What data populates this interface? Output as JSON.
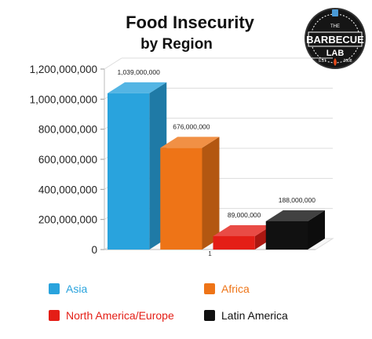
{
  "title": "Food Insecurity",
  "subtitle": "by Region",
  "logo": {
    "icon": "barbecue-lab-logo",
    "top_text": "THE",
    "main_text": "BARBECUE",
    "bottom_text": "LAB",
    "est_left": "EST",
    "est_right": "2008"
  },
  "colors": {
    "asia": "#29a3dd",
    "africa": "#ee7417",
    "north_america_europe": "#e41e16",
    "latin_america": "#111111",
    "asia_text": "#29a3dd",
    "africa_text": "#ee7417",
    "nae_text": "#e41e16",
    "latin_text": "#111111"
  },
  "chart_data": {
    "type": "bar",
    "title": "Food Insecurity by Region",
    "categories": [
      "Asia",
      "Africa",
      "North America/Europe",
      "Latin America"
    ],
    "values": [
      1039000000,
      676000000,
      89000000,
      188000000
    ],
    "data_labels": [
      "1,039,000,000",
      "676,000,000",
      "89,000,000",
      "188,000,000"
    ],
    "ylim": [
      0,
      1200000000
    ],
    "yticks": [
      0,
      200000000,
      400000000,
      600000000,
      800000000,
      1000000000,
      1200000000
    ],
    "ytick_labels": [
      "0",
      "200,000,000",
      "400,000,000",
      "600,000,000",
      "800,000,000",
      "1,000,000,000",
      "1,200,000,000"
    ],
    "xtick_label": "1",
    "grid": true,
    "style": "3d",
    "legend_position": "bottom"
  },
  "legend": [
    {
      "label": "Asia",
      "color_key": "asia"
    },
    {
      "label": "Africa",
      "color_key": "africa"
    },
    {
      "label": "North America/Europe",
      "color_key": "north_america_europe"
    },
    {
      "label": "Latin America",
      "color_key": "latin_america"
    }
  ]
}
